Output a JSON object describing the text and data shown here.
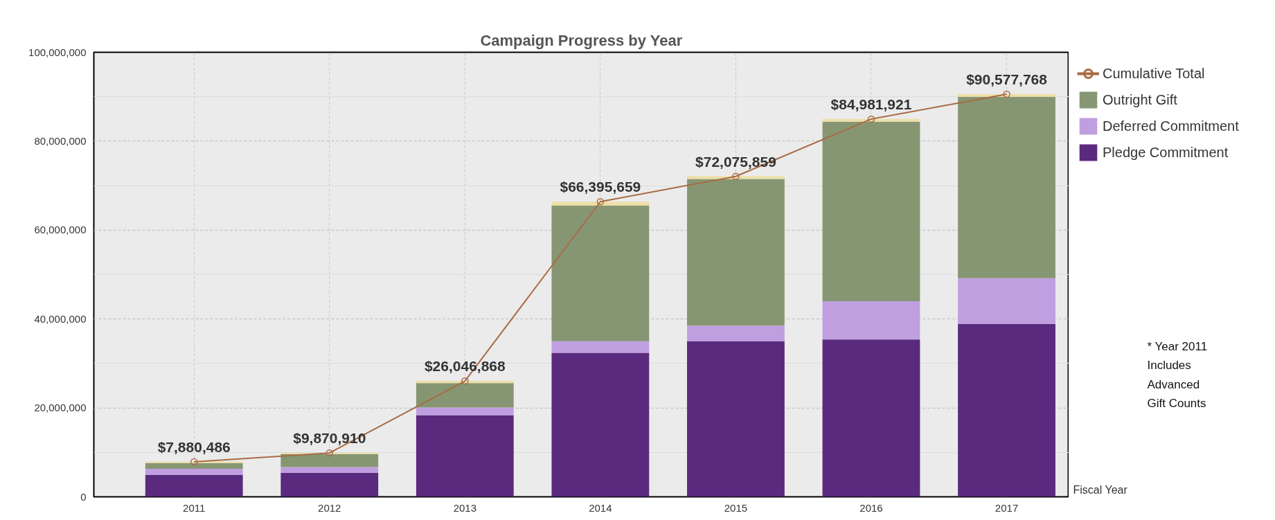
{
  "chart_data": {
    "type": "bar",
    "stacked": true,
    "title": "Campaign Progress by Year",
    "xlabel": "Fiscal Year",
    "categories": [
      "2011",
      "2012",
      "2013",
      "2014",
      "2015",
      "2016",
      "2017"
    ],
    "series": [
      {
        "name": "Pledge Commitment",
        "color": "#5a2a7e",
        "values": [
          4900000,
          5400000,
          18300000,
          32400000,
          35000000,
          35400000,
          38900000
        ]
      },
      {
        "name": "Deferred Commitment",
        "color": "#c09fe0",
        "values": [
          1400000,
          1300000,
          1800000,
          2600000,
          3500000,
          8600000,
          10300000
        ]
      },
      {
        "name": "Outright Gift",
        "color": "#869672",
        "values": [
          1300000,
          2900000,
          5500000,
          30500000,
          33000000,
          40400000,
          40800000
        ]
      },
      {
        "color": "#eddfa8",
        "values": [
          300000,
          300000,
          500000,
          900000,
          600000,
          600000,
          600000
        ]
      },
      {
        "name": "Cumulative Total",
        "type": "line",
        "color": "#a86b45",
        "marker": "circle",
        "values": [
          7880486,
          9870910,
          26046868,
          66395659,
          72075859,
          84981921,
          90577768
        ],
        "value_labels": [
          "$7,880,486",
          "$9,870,910",
          "$26,046,868",
          "$66,395,659",
          "$72,075,859",
          "$84,981,921",
          "$90,577,768"
        ]
      }
    ],
    "ylim": [
      0,
      100000000
    ],
    "yticks": [
      {
        "value": 0,
        "label": "0"
      },
      {
        "value": 20000000,
        "label": "20,000,000"
      },
      {
        "value": 40000000,
        "label": "40,000,000"
      },
      {
        "value": 60000000,
        "label": "60,000,000"
      },
      {
        "value": 80000000,
        "label": "80,000,000"
      },
      {
        "value": 100000000,
        "label": "100,000,000"
      }
    ],
    "grid": true,
    "legend": "top right",
    "annotations": [
      "* Year 2011\nIncludes\nAdvanced\nGift Counts"
    ]
  }
}
